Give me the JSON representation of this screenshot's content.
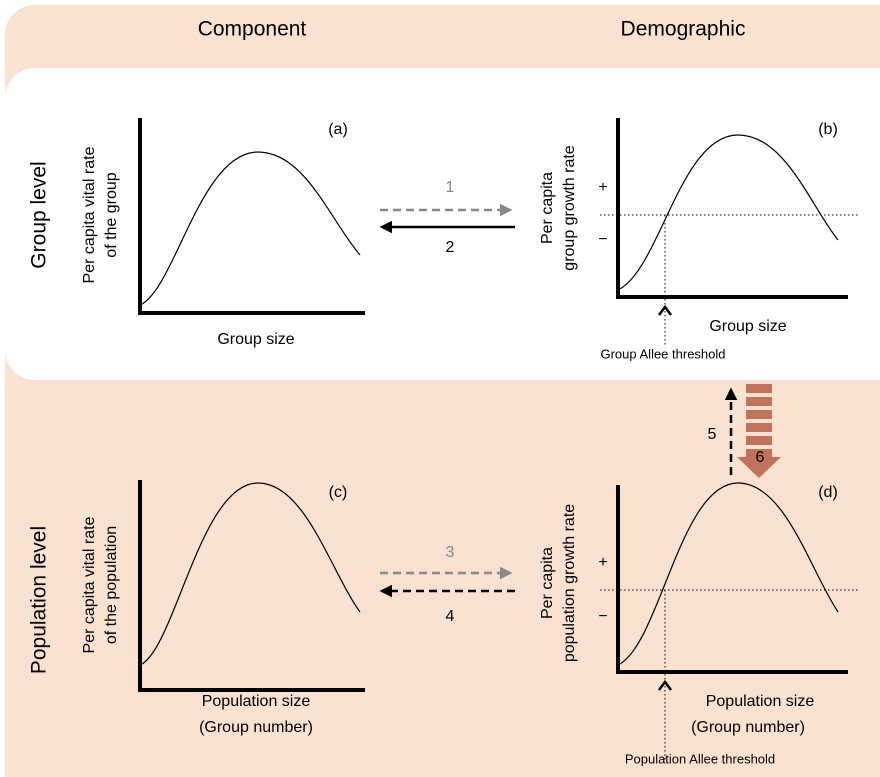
{
  "columns": [
    "Component",
    "Demographic"
  ],
  "rows": [
    "Group level",
    "Population level"
  ],
  "panels": [
    {
      "label": "(a)",
      "y_label": [
        "Per capita vital rate",
        "of the group"
      ],
      "x_label": [
        "Group size"
      ]
    },
    {
      "label": "(b)",
      "y_label": [
        "Per capita",
        "group growth rate"
      ],
      "x_label": [
        "Group size"
      ],
      "plus": "+",
      "minus": "−",
      "threshold": "Group  Allee threshold"
    },
    {
      "label": "(c)",
      "y_label": [
        "Per capita vital rate",
        "of the population"
      ],
      "x_label": [
        "Population size",
        "(Group number)"
      ]
    },
    {
      "label": "(d)",
      "y_label": [
        "Per capita",
        "population growth rate"
      ],
      "x_label": [
        "Population size",
        "(Group number)"
      ],
      "plus": "+",
      "minus": "−",
      "threshold": "Population Allee threshold"
    }
  ],
  "arrows": [
    "1",
    "2",
    "3",
    "4",
    "5",
    "6"
  ]
}
